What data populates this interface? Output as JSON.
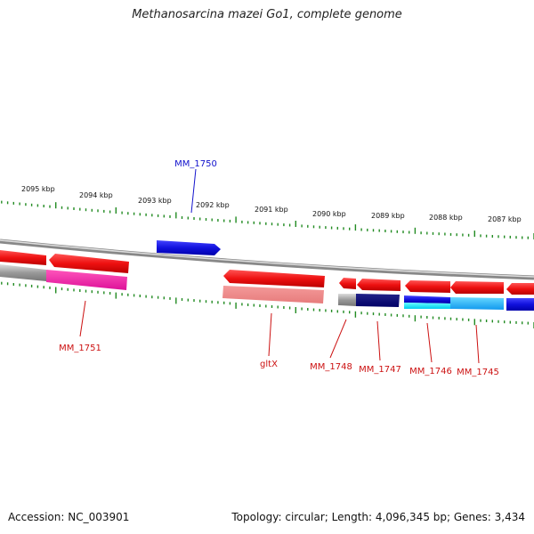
{
  "title": "Methanosarcina mazei Go1, complete genome",
  "footer": {
    "accession_label": "Accession:",
    "accession": "NC_003901",
    "summary": "Topology: circular; Length: 4,096,345 bp; Genes: 3,434"
  },
  "scale": {
    "unit": "kbp",
    "ticks": [
      "2095 kbp",
      "2094 kbp",
      "2093 kbp",
      "2092 kbp",
      "2091 kbp",
      "2090 kbp",
      "2089 kbp",
      "2088 kbp",
      "2087 kbp"
    ]
  },
  "colors": {
    "forward_gene": "#1111dd",
    "reverse_gene": "#ee1111",
    "backbone": "#999999",
    "tick": "#228B22",
    "label_forward": "#1111cc",
    "label_reverse": "#cc1111"
  },
  "labels": {
    "MM_1750": "MM_1750",
    "MM_1751": "MM_1751",
    "gltX": "gltX",
    "MM_1748": "MM_1748",
    "MM_1747": "MM_1747",
    "MM_1746": "MM_1746",
    "MM_1745": "MM_1745"
  }
}
